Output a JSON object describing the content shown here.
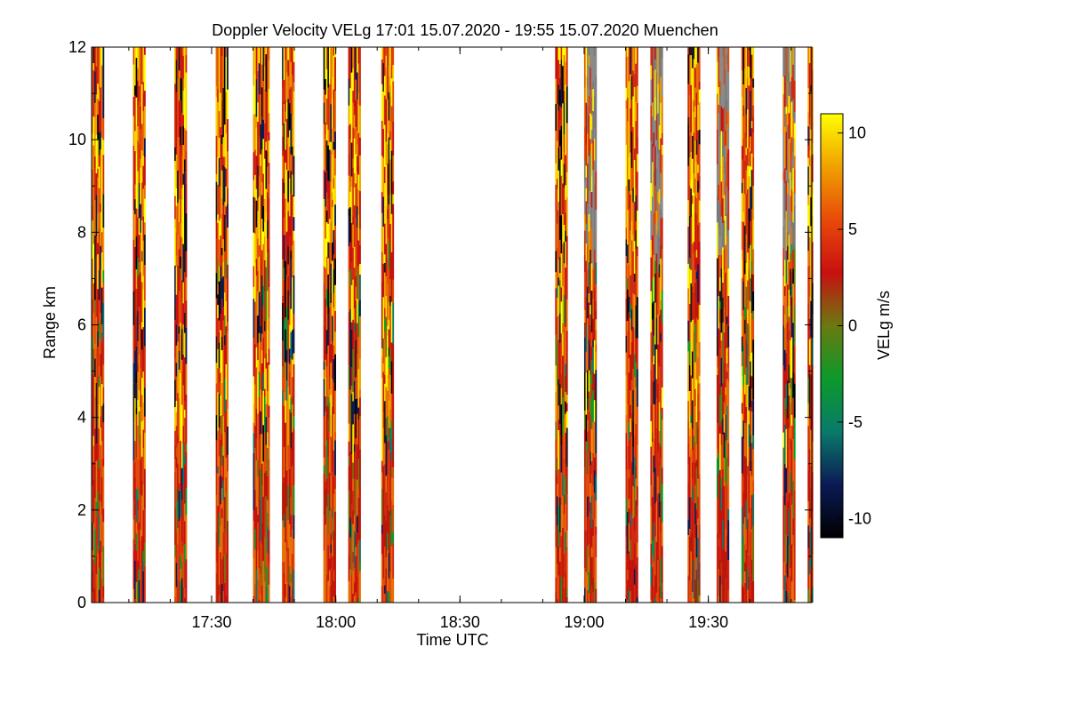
{
  "chart_data": {
    "type": "heatmap",
    "title": "Doppler Velocity VELg   17:01 15.07.2020 - 19:55 15.07.2020 Muenchen",
    "xlabel": "Time UTC",
    "ylabel": "Range km",
    "x_range": [
      "17:01",
      "19:55"
    ],
    "ylim": [
      0,
      12
    ],
    "x_tick_labels": [
      "17:30",
      "18:00",
      "18:30",
      "19:00",
      "19:30"
    ],
    "y_tick_labels": [
      "0",
      "2",
      "4",
      "6",
      "8",
      "10",
      "12"
    ],
    "colorbar": {
      "label": "VELg m/s",
      "range": [
        -11,
        11
      ],
      "tick_labels": [
        "10",
        "5",
        "0",
        "-5",
        "-10"
      ],
      "colors": [
        "#000000",
        "#0b1a55",
        "#0a7a6a",
        "#0b9a2a",
        "#6a7a10",
        "#c81010",
        "#e84a0a",
        "#f0a000",
        "#ffff00"
      ]
    },
    "observation_periods": [
      {
        "start": "17:01",
        "end": "17:04"
      },
      {
        "start": "17:11",
        "end": "17:14"
      },
      {
        "start": "17:21",
        "end": "17:24"
      },
      {
        "start": "17:31",
        "end": "17:34"
      },
      {
        "start": "17:40",
        "end": "17:44"
      },
      {
        "start": "17:47",
        "end": "17:50"
      },
      {
        "start": "17:57",
        "end": "18:00"
      },
      {
        "start": "18:03",
        "end": "18:06"
      },
      {
        "start": "18:11",
        "end": "18:14"
      },
      {
        "start": "18:53",
        "end": "18:56"
      },
      {
        "start": "19:00",
        "end": "19:03"
      },
      {
        "start": "19:10",
        "end": "19:13"
      },
      {
        "start": "19:16",
        "end": "19:19"
      },
      {
        "start": "19:25",
        "end": "19:28"
      },
      {
        "start": "19:32",
        "end": "19:35"
      },
      {
        "start": "19:38",
        "end": "19:41"
      },
      {
        "start": "19:48",
        "end": "19:51"
      },
      {
        "start": "19:54",
        "end": "19:55"
      }
    ],
    "grid": false
  }
}
